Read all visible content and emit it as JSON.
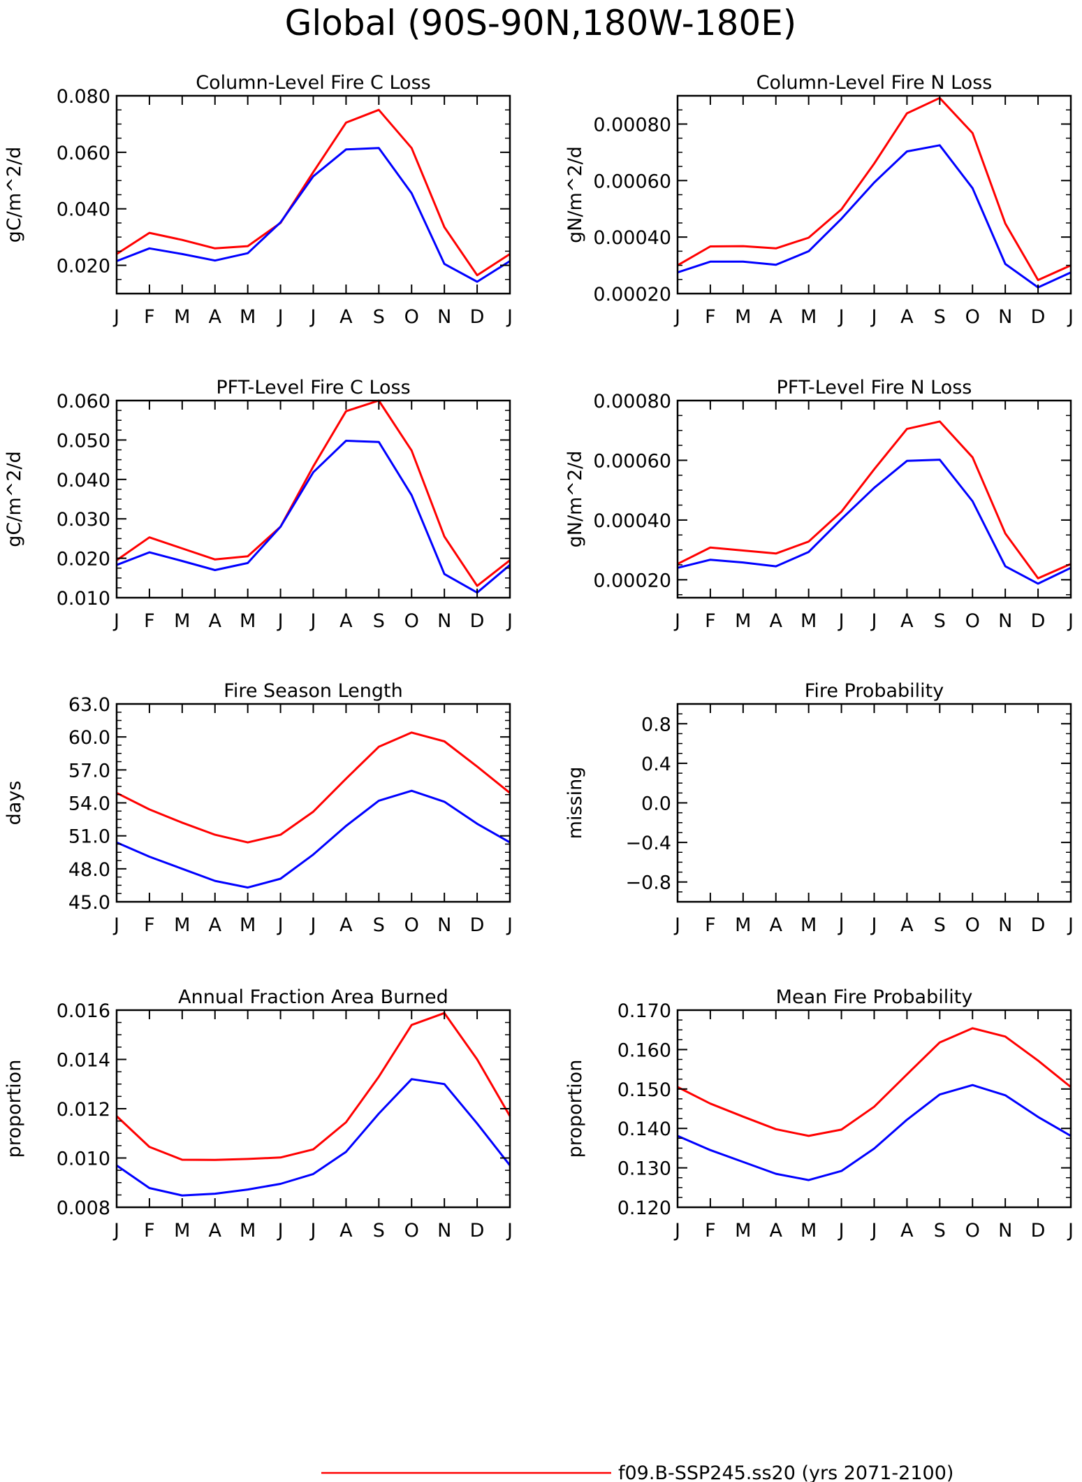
{
  "figure_title": "Global (90S-90N,180W-180E)",
  "legend": [
    {
      "label": "f09.B-SSP245.ss20 (yrs 2071-2100)",
      "color": "#ff0000"
    }
  ],
  "chart_data": [
    {
      "type": "line",
      "title": "Column-Level Fire C Loss",
      "ylabel": "gC/m^2/d",
      "categories": [
        "J",
        "F",
        "M",
        "A",
        "M",
        "J",
        "J",
        "A",
        "S",
        "O",
        "N",
        "D",
        "J"
      ],
      "ylim": [
        0.01,
        0.08
      ],
      "yticks": [
        "0.020",
        "0.040",
        "0.060",
        "0.080"
      ],
      "series": [
        {
          "color": "#ff0000",
          "values": [
            0.024,
            0.0315,
            0.029,
            0.026,
            0.0268,
            0.035,
            0.053,
            0.0705,
            0.075,
            0.0615,
            0.0335,
            0.0165,
            0.024
          ]
        },
        {
          "color": "#0000ff",
          "values": [
            0.0215,
            0.026,
            0.024,
            0.0217,
            0.0243,
            0.0352,
            0.0515,
            0.061,
            0.0615,
            0.0455,
            0.0205,
            0.0142,
            0.0215
          ]
        }
      ]
    },
    {
      "type": "line",
      "title": "Column-Level Fire N Loss",
      "ylabel": "gN/m^2/d",
      "categories": [
        "J",
        "F",
        "M",
        "A",
        "M",
        "J",
        "J",
        "A",
        "S",
        "O",
        "N",
        "D",
        "J"
      ],
      "ylim": [
        0.0002,
        0.0009
      ],
      "yticks": [
        "0.00020",
        "0.00040",
        "0.00060",
        "0.00080"
      ],
      "series": [
        {
          "color": "#ff0000",
          "values": [
            0.0003,
            0.000367,
            0.000368,
            0.00036,
            0.000398,
            0.000498,
            0.00066,
            0.000838,
            0.000892,
            0.000768,
            0.000448,
            0.000248,
            0.0003
          ]
        },
        {
          "color": "#0000ff",
          "values": [
            0.000275,
            0.000313,
            0.000313,
            0.000302,
            0.00035,
            0.000465,
            0.000593,
            0.000703,
            0.000725,
            0.000573,
            0.000305,
            0.000222,
            0.000275
          ]
        }
      ]
    },
    {
      "type": "line",
      "title": "PFT-Level Fire C Loss",
      "ylabel": "gC/m^2/d",
      "categories": [
        "J",
        "F",
        "M",
        "A",
        "M",
        "J",
        "J",
        "A",
        "S",
        "O",
        "N",
        "D",
        "J"
      ],
      "ylim": [
        0.01,
        0.06
      ],
      "yticks": [
        "0.010",
        "0.020",
        "0.030",
        "0.040",
        "0.050",
        "0.060"
      ],
      "series": [
        {
          "color": "#ff0000",
          "values": [
            0.0195,
            0.0253,
            0.0225,
            0.0197,
            0.0205,
            0.028,
            0.0433,
            0.0573,
            0.06,
            0.0473,
            0.0255,
            0.013,
            0.0195
          ]
        },
        {
          "color": "#0000ff",
          "values": [
            0.0183,
            0.0215,
            0.0193,
            0.017,
            0.0188,
            0.028,
            0.0418,
            0.0498,
            0.0495,
            0.036,
            0.016,
            0.0113,
            0.0183
          ]
        }
      ]
    },
    {
      "type": "line",
      "title": "PFT-Level Fire N Loss",
      "ylabel": "gN/m^2/d",
      "categories": [
        "J",
        "F",
        "M",
        "A",
        "M",
        "J",
        "J",
        "A",
        "S",
        "O",
        "N",
        "D",
        "J"
      ],
      "ylim": [
        0.00014,
        0.0008
      ],
      "yticks": [
        "0.00020",
        "0.00040",
        "0.00060",
        "0.00080"
      ],
      "series": [
        {
          "color": "#ff0000",
          "values": [
            0.000253,
            0.000308,
            0.000298,
            0.000288,
            0.000328,
            0.000428,
            0.00057,
            0.000705,
            0.00073,
            0.00061,
            0.000355,
            0.000205,
            0.000253
          ]
        },
        {
          "color": "#0000ff",
          "values": [
            0.00024,
            0.000267,
            0.000258,
            0.000245,
            0.000293,
            0.000403,
            0.000508,
            0.000598,
            0.000602,
            0.000463,
            0.000245,
            0.000187,
            0.00024
          ]
        }
      ]
    },
    {
      "type": "line",
      "title": "Fire Season Length",
      "ylabel": "days",
      "categories": [
        "J",
        "F",
        "M",
        "A",
        "M",
        "J",
        "J",
        "A",
        "S",
        "O",
        "N",
        "D",
        "J"
      ],
      "ylim": [
        45.0,
        63.0
      ],
      "yticks": [
        "45.0",
        "48.0",
        "51.0",
        "54.0",
        "57.0",
        "60.0",
        "63.0"
      ],
      "series": [
        {
          "color": "#ff0000",
          "values": [
            54.9,
            53.4,
            52.2,
            51.1,
            50.4,
            51.1,
            53.2,
            56.2,
            59.1,
            60.4,
            59.6,
            57.3,
            54.9
          ]
        },
        {
          "color": "#0000ff",
          "values": [
            50.4,
            49.1,
            48.0,
            46.9,
            46.3,
            47.1,
            49.3,
            51.9,
            54.2,
            55.1,
            54.1,
            52.1,
            50.4
          ]
        }
      ]
    },
    {
      "type": "line",
      "title": "Fire Probability",
      "ylabel": "missing",
      "categories": [
        "J",
        "F",
        "M",
        "A",
        "M",
        "J",
        "J",
        "A",
        "S",
        "O",
        "N",
        "D",
        "J"
      ],
      "ylim": [
        -1.0,
        1.0
      ],
      "yticks": [
        "−0.8",
        "−0.4",
        "0.0",
        "0.4",
        "0.8"
      ],
      "series": []
    },
    {
      "type": "line",
      "title": "Annual Fraction Area Burned",
      "ylabel": "proportion",
      "categories": [
        "J",
        "F",
        "M",
        "A",
        "M",
        "J",
        "J",
        "A",
        "S",
        "O",
        "N",
        "D",
        "J"
      ],
      "ylim": [
        0.008,
        0.016
      ],
      "yticks": [
        "0.008",
        "0.010",
        "0.012",
        "0.014",
        "0.016"
      ],
      "series": [
        {
          "color": "#ff0000",
          "values": [
            0.0117,
            0.01045,
            0.00993,
            0.00992,
            0.00996,
            0.01002,
            0.01035,
            0.01145,
            0.0133,
            0.0154,
            0.01588,
            0.014,
            0.0117
          ]
        },
        {
          "color": "#0000ff",
          "values": [
            0.0097,
            0.00878,
            0.00848,
            0.00855,
            0.00872,
            0.00895,
            0.00935,
            0.01025,
            0.0118,
            0.0132,
            0.013,
            0.0114,
            0.0097
          ]
        }
      ]
    },
    {
      "type": "line",
      "title": "Mean Fire Probability",
      "ylabel": "proportion",
      "categories": [
        "J",
        "F",
        "M",
        "A",
        "M",
        "J",
        "J",
        "A",
        "S",
        "O",
        "N",
        "D",
        "J"
      ],
      "ylim": [
        0.12,
        0.17
      ],
      "yticks": [
        "0.120",
        "0.130",
        "0.140",
        "0.150",
        "0.160",
        "0.170"
      ],
      "series": [
        {
          "color": "#ff0000",
          "values": [
            0.1505,
            0.1463,
            0.143,
            0.1398,
            0.1381,
            0.1397,
            0.1455,
            0.1537,
            0.1618,
            0.1654,
            0.1633,
            0.1572,
            0.1505
          ]
        },
        {
          "color": "#0000ff",
          "values": [
            0.1381,
            0.1345,
            0.1315,
            0.1285,
            0.1269,
            0.1292,
            0.1349,
            0.1422,
            0.1486,
            0.151,
            0.1484,
            0.1429,
            0.1381
          ]
        }
      ]
    }
  ]
}
